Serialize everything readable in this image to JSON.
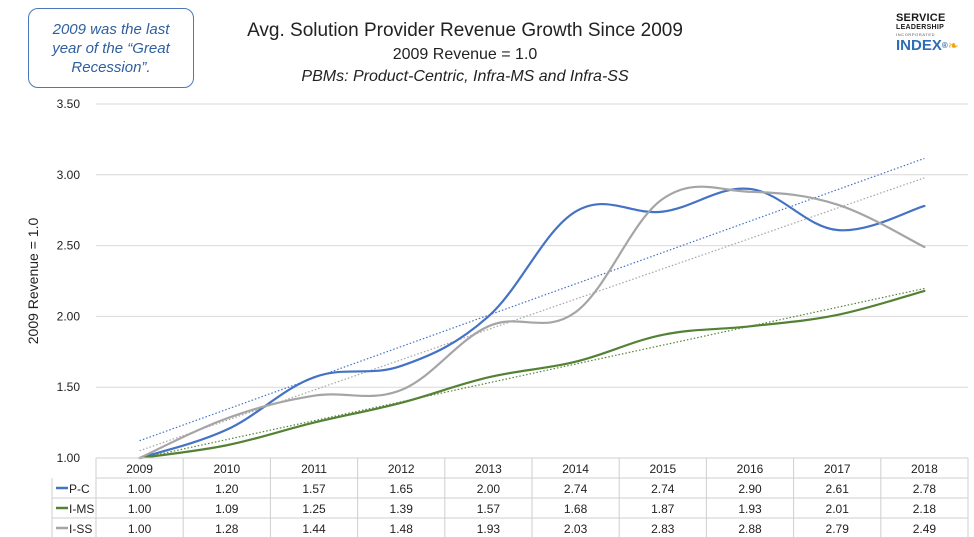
{
  "callout": {
    "text": "2009 was the last year of the “Great Recession”."
  },
  "logo": {
    "line1": "SERVICE",
    "line2": "LEADERSHIP",
    "line3": "INCORPORATED",
    "line4": "INDEX",
    "mark": "®"
  },
  "chart_data": {
    "type": "line",
    "title": "Avg. Solution Provider Revenue Growth Since 2009",
    "subtitle": "2009 Revenue = 1.0",
    "subtitle2": "PBMs: Product-Centric, Infra-MS and Infra-SS",
    "ylabel": "2009 Revenue = 1.0",
    "xlabel": "",
    "ylim": [
      1.0,
      3.5
    ],
    "yticks": [
      "1.00",
      "1.50",
      "2.00",
      "2.50",
      "3.00",
      "3.50"
    ],
    "categories": [
      "2009",
      "2010",
      "2011",
      "2012",
      "2013",
      "2014",
      "2015",
      "2016",
      "2017",
      "2018"
    ],
    "grid": true,
    "legend": "data-table",
    "trendlines": true,
    "series": [
      {
        "name": "P-C",
        "color": "#4472c4",
        "values": [
          1.0,
          1.2,
          1.57,
          1.65,
          2.0,
          2.74,
          2.74,
          2.9,
          2.61,
          2.78
        ],
        "labels": [
          "1.00",
          "1.20",
          "1.57",
          "1.65",
          "2.00",
          "2.74",
          "2.74",
          "2.90",
          "2.61",
          "2.78"
        ]
      },
      {
        "name": "I-MS",
        "color": "#548235",
        "values": [
          1.0,
          1.09,
          1.25,
          1.39,
          1.57,
          1.68,
          1.87,
          1.93,
          2.01,
          2.18
        ],
        "labels": [
          "1.00",
          "1.09",
          "1.25",
          "1.39",
          "1.57",
          "1.68",
          "1.87",
          "1.93",
          "2.01",
          "2.18"
        ]
      },
      {
        "name": "I-SS",
        "color": "#a5a5a5",
        "values": [
          1.0,
          1.28,
          1.44,
          1.48,
          1.93,
          2.03,
          2.83,
          2.88,
          2.79,
          2.49
        ],
        "labels": [
          "1.00",
          "1.28",
          "1.44",
          "1.48",
          "1.93",
          "2.03",
          "2.83",
          "2.88",
          "2.79",
          "2.49"
        ]
      }
    ]
  }
}
